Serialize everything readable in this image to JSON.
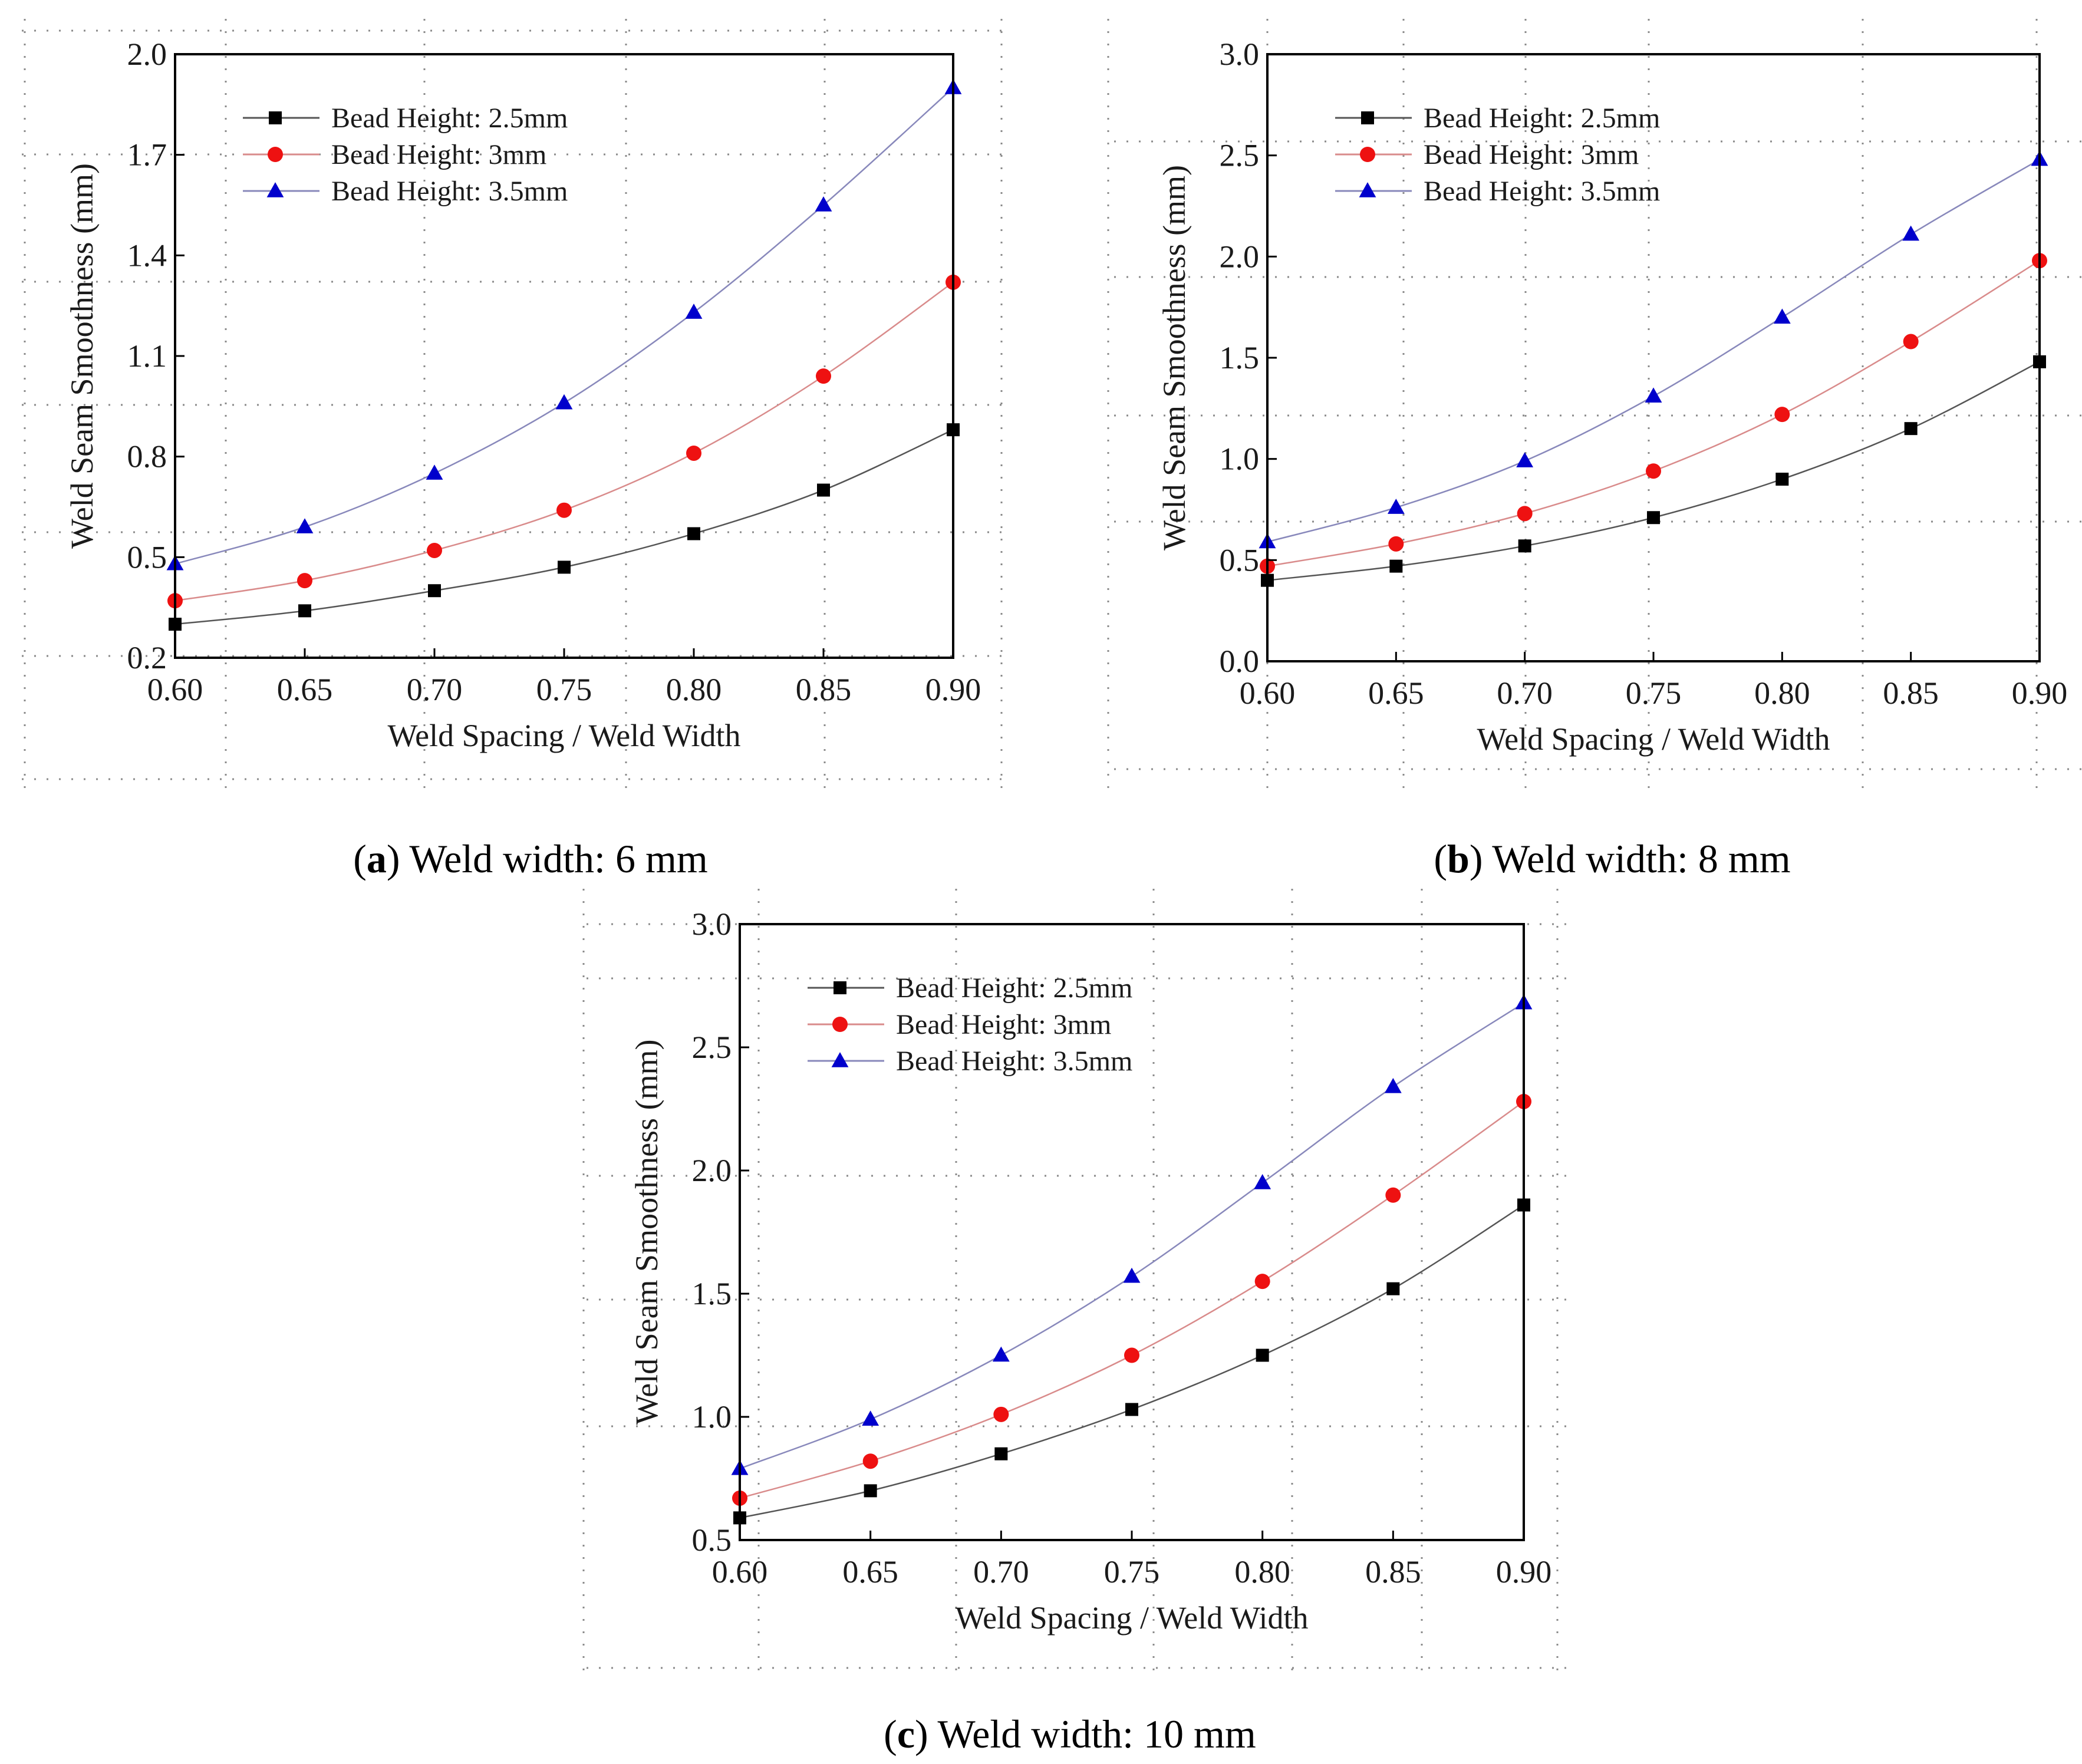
{
  "colors": {
    "series_1": "#000000",
    "series_2": "#ee1111",
    "series_3": "#0000cc",
    "line_1": "#555555",
    "line_2": "#d98b8b",
    "line_3": "#8888bb"
  },
  "chart_data": [
    {
      "id": "a",
      "type": "line",
      "caption_letter": "a",
      "caption_text": "Weld width: 6 mm",
      "xlabel": "Weld Spacing / Weld Width",
      "ylabel": "Weld Seam Smoothness (mm)",
      "xlim": [
        0.6,
        0.9
      ],
      "ylim": [
        0.2,
        2.0
      ],
      "x_ticks": [
        "0.60",
        "0.65",
        "0.70",
        "0.75",
        "0.80",
        "0.85",
        "0.90"
      ],
      "y_ticks": [
        "0.2",
        "0.5",
        "0.8",
        "1.1",
        "1.4",
        "1.7",
        "2.0"
      ],
      "grid": true,
      "legend_position": "top-left",
      "x": [
        0.6,
        0.65,
        0.7,
        0.75,
        0.8,
        0.85,
        0.9
      ],
      "series": [
        {
          "name": "Bead Height: 2.5mm",
          "marker": "square",
          "values": [
            0.3,
            0.34,
            0.4,
            0.47,
            0.57,
            0.7,
            0.88
          ]
        },
        {
          "name": "Bead Height: 3mm",
          "marker": "circle",
          "values": [
            0.37,
            0.43,
            0.52,
            0.64,
            0.81,
            1.04,
            1.32
          ]
        },
        {
          "name": "Bead Height: 3.5mm",
          "marker": "triangle",
          "values": [
            0.48,
            0.59,
            0.75,
            0.96,
            1.23,
            1.55,
            1.9
          ]
        }
      ]
    },
    {
      "id": "b",
      "type": "line",
      "caption_letter": "b",
      "caption_text": "Weld width: 8 mm",
      "xlabel": "Weld Spacing / Weld Width",
      "ylabel": "Weld Seam Smoothness (mm)",
      "xlim": [
        0.6,
        0.9
      ],
      "ylim": [
        0.0,
        3.0
      ],
      "x_ticks": [
        "0.60",
        "0.65",
        "0.70",
        "0.75",
        "0.80",
        "0.85",
        "0.90"
      ],
      "y_ticks": [
        "0.0",
        "0.5",
        "1.0",
        "1.5",
        "2.0",
        "2.5",
        "3.0"
      ],
      "grid": true,
      "legend_position": "top-left",
      "x": [
        0.6,
        0.65,
        0.7,
        0.75,
        0.8,
        0.85,
        0.9
      ],
      "series": [
        {
          "name": "Bead Height: 2.5mm",
          "marker": "square",
          "values": [
            0.4,
            0.47,
            0.57,
            0.71,
            0.9,
            1.15,
            1.48
          ]
        },
        {
          "name": "Bead Height: 3mm",
          "marker": "circle",
          "values": [
            0.47,
            0.58,
            0.73,
            0.94,
            1.22,
            1.58,
            1.98
          ]
        },
        {
          "name": "Bead Height: 3.5mm",
          "marker": "triangle",
          "values": [
            0.59,
            0.76,
            0.99,
            1.31,
            1.7,
            2.11,
            2.48
          ]
        }
      ]
    },
    {
      "id": "c",
      "type": "line",
      "caption_letter": "c",
      "caption_text": "Weld width: 10 mm",
      "xlabel": "Weld Spacing / Weld Width",
      "ylabel": "Weld Seam Smoothness (mm)",
      "xlim": [
        0.6,
        0.9
      ],
      "ylim": [
        0.5,
        3.0
      ],
      "x_ticks": [
        "0.60",
        "0.65",
        "0.70",
        "0.75",
        "0.80",
        "0.85",
        "0.90"
      ],
      "y_ticks": [
        "0.5",
        "1.0",
        "1.5",
        "2.0",
        "2.5",
        "3.0"
      ],
      "grid": true,
      "legend_position": "top-left",
      "x": [
        0.6,
        0.65,
        0.7,
        0.75,
        0.8,
        0.85,
        0.9
      ],
      "series": [
        {
          "name": "Bead Height: 2.5mm",
          "marker": "square",
          "values": [
            0.59,
            0.7,
            0.85,
            1.03,
            1.25,
            1.52,
            1.86
          ]
        },
        {
          "name": "Bead Height: 3mm",
          "marker": "circle",
          "values": [
            0.67,
            0.82,
            1.01,
            1.25,
            1.55,
            1.9,
            2.28
          ]
        },
        {
          "name": "Bead Height: 3.5mm",
          "marker": "triangle",
          "values": [
            0.79,
            0.99,
            1.25,
            1.57,
            1.95,
            2.34,
            2.68
          ]
        }
      ]
    }
  ]
}
